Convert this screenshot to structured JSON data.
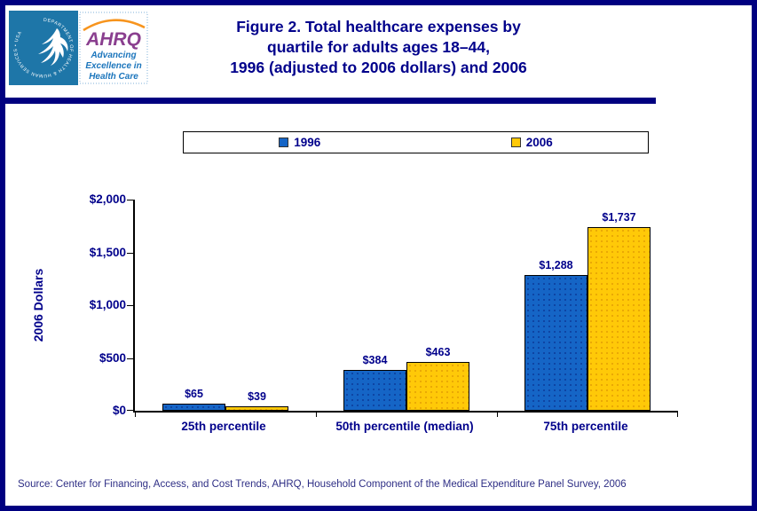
{
  "header": {
    "title_lines": [
      "Figure 2. Total healthcare expenses by",
      "quartile for adults ages 18–44,",
      "1996 (adjusted to 2006 dollars) and 2006"
    ],
    "logo": {
      "hhs_seal_text": "DEPARTMENT OF HEALTH & HUMAN SERVICES • USA",
      "ahrq_acronym": "AHRQ",
      "ahrq_tagline_lines": [
        "Advancing",
        "Excellence in",
        "Health Care"
      ]
    }
  },
  "chart_data": {
    "type": "bar",
    "title": "Figure 2. Total healthcare expenses by quartile for adults ages 18–44, 1996 (adjusted to 2006 dollars) and 2006",
    "categories": [
      "25th percentile",
      "50th percentile (median)",
      "75th percentile"
    ],
    "series": [
      {
        "name": "1996",
        "color": "#1565C6",
        "values": [
          65,
          384,
          1288
        ],
        "value_labels": [
          "$65",
          "$384",
          "$1,288"
        ]
      },
      {
        "name": "2006",
        "color": "#FFC908",
        "values": [
          39,
          463,
          1737
        ],
        "value_labels": [
          "$39",
          "$463",
          "$1,737"
        ]
      }
    ],
    "xlabel": "",
    "ylabel": "2006 Dollars",
    "ylim": [
      0,
      2000
    ],
    "yticks": [
      {
        "value": 0,
        "label": "$0"
      },
      {
        "value": 500,
        "label": "$500"
      },
      {
        "value": 1000,
        "label": "$1,000"
      },
      {
        "value": 1500,
        "label": "$1,500"
      },
      {
        "value": 2000,
        "label": "$2,000"
      }
    ],
    "grid": false,
    "legend_position": "top"
  },
  "footer": {
    "source": "Source: Center for Financing, Access, and Cost Trends, AHRQ, Household Component of the Medical Expenditure Panel Survey, 2006"
  },
  "colors": {
    "accent_navy": "#00008B",
    "border_navy": "#000080",
    "bar_blue": "#1565C6",
    "bar_yellow": "#FFC908",
    "hhs_blue": "#1E76A8",
    "ahrq_purple": "#8A3F8F",
    "arc_orange": "#F7941D",
    "tagline_blue": "#1B75BC"
  }
}
